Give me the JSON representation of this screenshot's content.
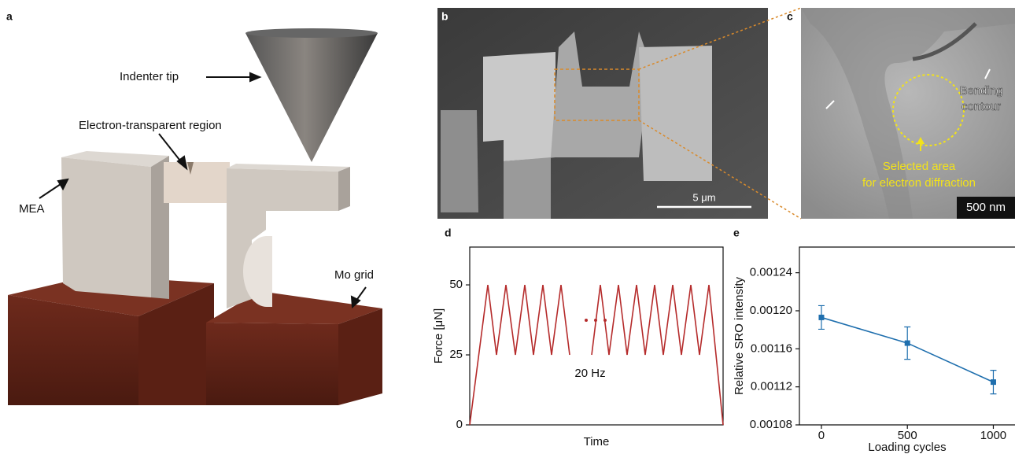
{
  "panels": {
    "a": {
      "label": "a",
      "annotations": [
        "Indenter tip",
        "Electron-transparent region",
        "MEA",
        "Mo grid"
      ]
    },
    "b": {
      "label": "b",
      "scale_bar": "5 μm"
    },
    "c": {
      "label": "c",
      "annotations": [
        "Bending",
        "contour",
        "Selected area",
        "for electron diffraction"
      ],
      "scale_bar": "500 nm"
    }
  },
  "chart_data": [
    {
      "type": "line",
      "panel_label": "d",
      "x_label": "Time",
      "y_label": "Force [μN]",
      "annotation": "20 Hz",
      "xlim": [
        0,
        322
      ],
      "ylim": [
        0,
        63.5
      ],
      "yticks": [
        0,
        25,
        50
      ],
      "series": [
        {
          "color": "#b52b2b",
          "x": [
            0,
            23,
            34,
            46,
            58,
            70,
            81,
            93,
            104,
            116,
            127,
            null,
            155,
            166,
            177,
            189,
            200,
            212,
            223,
            235,
            246,
            258,
            269,
            281,
            292,
            304,
            322
          ],
          "values": [
            0,
            50,
            25,
            50,
            25,
            50,
            25,
            50,
            25,
            50,
            25,
            null,
            25,
            50,
            25,
            50,
            25,
            50,
            25,
            50,
            25,
            50,
            25,
            50,
            25,
            50,
            0
          ]
        }
      ]
    },
    {
      "type": "line",
      "panel_label": "e",
      "x_label": "Loading cycles",
      "y_label": "Relative SRO intensity",
      "xlim": [
        -128,
        1126
      ],
      "ylim": [
        0.00108,
        0.001267
      ],
      "xticks": [
        0,
        500,
        1000
      ],
      "yticks": [
        0.00108,
        0.00112,
        0.00116,
        {
          "value": 0.0012,
          "label": "0.00120"
        },
        0.00124
      ],
      "series": [
        {
          "color": "#1f6fae",
          "marker": "square",
          "x": [
            0,
            500,
            1000
          ],
          "values": [
            0.001193,
            0.001166,
            0.001125
          ],
          "errors": [
            1.24e-05,
            1.7e-05,
            1.24e-05
          ]
        }
      ]
    }
  ]
}
